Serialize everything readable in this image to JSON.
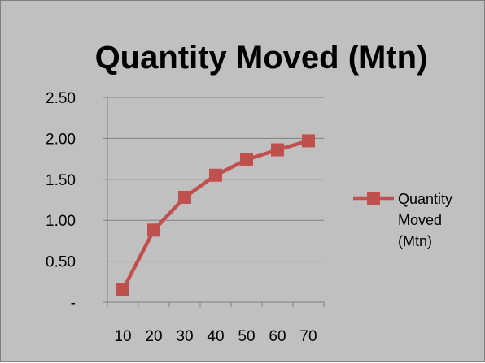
{
  "chart_data": {
    "type": "line",
    "title": "Quantity Moved (Mtn)",
    "xlabel": "",
    "ylabel": "",
    "categories": [
      "10",
      "20",
      "30",
      "40",
      "50",
      "60",
      "70"
    ],
    "series": [
      {
        "name": "Quantity Moved (Mtn)",
        "legend_lines": [
          "Quantity",
          "Moved",
          "(Mtn)"
        ],
        "values": [
          0.15,
          0.88,
          1.28,
          1.55,
          1.74,
          1.86,
          1.97
        ],
        "color": "#c0504d",
        "marker": "square"
      }
    ],
    "ylim": [
      0,
      2.5
    ],
    "y_ticks": [
      "-",
      "0.50",
      "1.00",
      "1.50",
      "2.00",
      "2.50"
    ],
    "grid": "horizontal",
    "legend_position": "right",
    "background": "#c0c0c0"
  }
}
